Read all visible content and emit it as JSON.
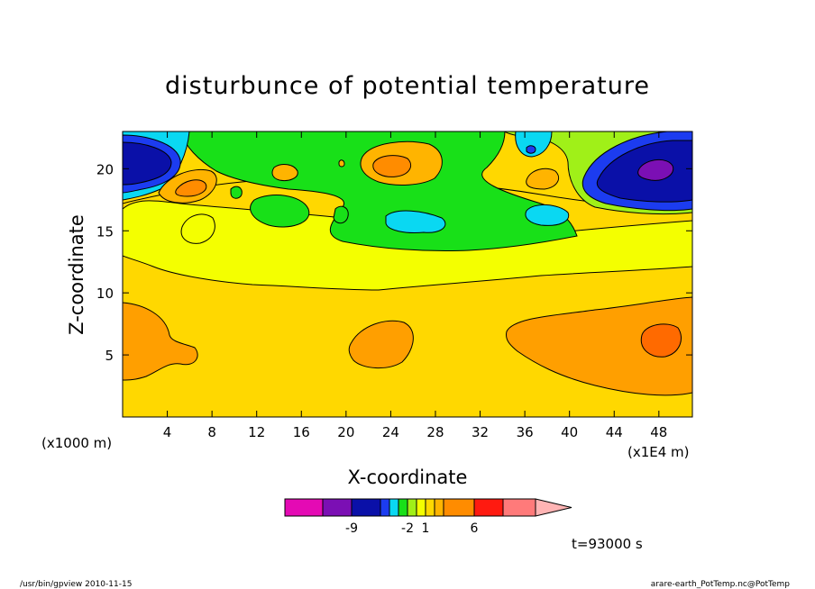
{
  "chart_data": {
    "type": "heatmap",
    "title": "disturbunce of potential temperature",
    "xlabel": "X-coordinate",
    "ylabel": "Z-coordinate",
    "x_unit_left": "(x1000 m)",
    "x_unit_right": "(x1E4 m)",
    "xlim": [
      0,
      51
    ],
    "ylim": [
      0,
      23
    ],
    "xticks": [
      4,
      8,
      12,
      16,
      20,
      24,
      28,
      32,
      36,
      40,
      44,
      48
    ],
    "yticks": [
      5,
      10,
      15,
      20
    ],
    "colorbar": {
      "colors": [
        "#e40ab4",
        "#7b0fb4",
        "#0a10a8",
        "#1c3cf0",
        "#0ad8f2",
        "#18e018",
        "#a0f018",
        "#f4ff00",
        "#ffd800",
        "#ffb400",
        "#ff8c00",
        "#ff1a10",
        "#ff7a7a",
        "#ffb4b4"
      ],
      "labels": [
        "-9",
        "-2",
        "1",
        "6"
      ],
      "label_positions": [
        1,
        5,
        7,
        10
      ]
    },
    "annotations": {
      "time": "t=93000 s",
      "footer_left": "/usr/bin/gpview   2010-11-15",
      "footer_right": "arare-earth_PotTemp.nc@PotTemp"
    },
    "regions": [
      {
        "value": 3,
        "x_range": [
          0,
          51
        ],
        "z_range": [
          0,
          23
        ]
      },
      {
        "value": 4,
        "x_range": [
          0,
          51
        ],
        "z_range": [
          11,
          17
        ]
      },
      {
        "value": 5,
        "x_range": [
          0,
          7
        ],
        "z_range": [
          2.5,
          9
        ]
      },
      {
        "value": 5,
        "x_range": [
          20,
          27
        ],
        "z_range": [
          4,
          8
        ]
      },
      {
        "value": 5,
        "x_range": [
          34,
          51
        ],
        "z_range": [
          1.5,
          9
        ]
      },
      {
        "value": 6,
        "x_range": [
          46,
          50
        ],
        "z_range": [
          5,
          7.5
        ]
      },
      {
        "value": 1,
        "x_range": [
          18,
          40
        ],
        "z_range": [
          13.5,
          23
        ]
      },
      {
        "value": -1,
        "x_range": [
          23,
          29
        ],
        "z_range": [
          14,
          17
        ]
      },
      {
        "value": -1,
        "x_range": [
          36,
          40
        ],
        "z_range": [
          15.5,
          17.5
        ]
      },
      {
        "value": -5,
        "x_range": [
          0,
          5
        ],
        "z_range": [
          18,
          23
        ]
      },
      {
        "value": -6,
        "x_range": [
          41,
          51
        ],
        "z_range": [
          16.5,
          22.5
        ]
      },
      {
        "value": -9,
        "x_range": [
          46,
          49
        ],
        "z_range": [
          19,
          21
        ]
      },
      {
        "value": 4,
        "x_range": [
          3,
          9
        ],
        "z_range": [
          17,
          21
        ]
      },
      {
        "value": 5,
        "x_range": [
          21,
          28
        ],
        "z_range": [
          18.5,
          22
        ]
      }
    ]
  }
}
